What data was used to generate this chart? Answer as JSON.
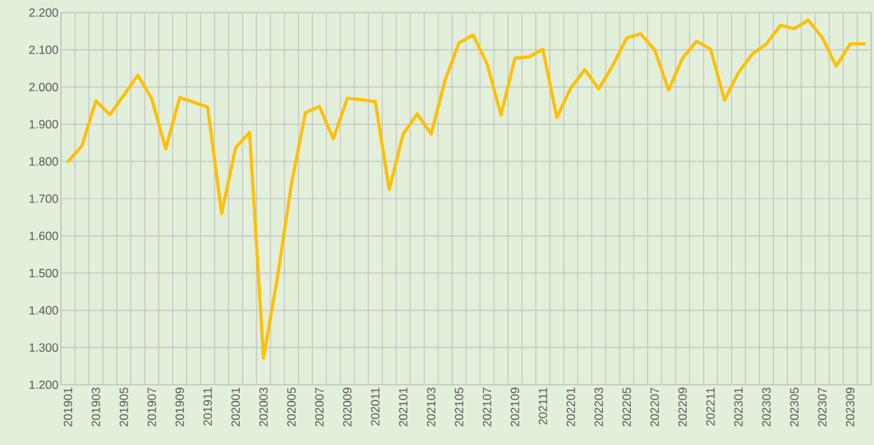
{
  "chart_data": {
    "type": "line",
    "categories": [
      "201901",
      null,
      "201903",
      null,
      "201905",
      null,
      "201907",
      null,
      "201909",
      null,
      "201911",
      null,
      "202001",
      null,
      "202003",
      null,
      "202005",
      null,
      "202007",
      null,
      "202009",
      null,
      "202011",
      null,
      "202101",
      null,
      "202103",
      null,
      "202105",
      null,
      "202107",
      null,
      "202109",
      null,
      "202111",
      null,
      "202201",
      null,
      "202203",
      null,
      "202205",
      null,
      "202207",
      null,
      "202209",
      null,
      "202211",
      null,
      "202301",
      null,
      "202303",
      null,
      "202305",
      null,
      "202307",
      null,
      "202309",
      null
    ],
    "values": [
      1800,
      1842,
      1963,
      1926,
      1978,
      2032,
      1968,
      1834,
      1972,
      1959,
      1946,
      1660,
      1837,
      1878,
      1272,
      1490,
      1740,
      1931,
      1948,
      1861,
      1970,
      1966,
      1961,
      1725,
      1874,
      1928,
      1874,
      2019,
      2119,
      2140,
      2063,
      1925,
      2078,
      2081,
      2102,
      1918,
      1998,
      2047,
      1995,
      2058,
      2132,
      2143,
      2100,
      1992,
      2078,
      2123,
      2102,
      1965,
      2039,
      2089,
      2116,
      2166,
      2157,
      2180,
      2133,
      2056,
      2116,
      2116
    ],
    "color": "#ffc000",
    "ylim": [
      1200,
      2200
    ],
    "yticks": [
      {
        "value": 1200,
        "label": "1.200"
      },
      {
        "value": 1300,
        "label": "1.300"
      },
      {
        "value": 1400,
        "label": "1.400"
      },
      {
        "value": 1500,
        "label": "1.500"
      },
      {
        "value": 1600,
        "label": "1.600"
      },
      {
        "value": 1700,
        "label": "1.700"
      },
      {
        "value": 1800,
        "label": "1.800"
      },
      {
        "value": 1900,
        "label": "1.900"
      },
      {
        "value": 2000,
        "label": "2.000"
      },
      {
        "value": 2100,
        "label": "2.100"
      },
      {
        "value": 2200,
        "label": "2.200"
      }
    ],
    "grid": true
  }
}
